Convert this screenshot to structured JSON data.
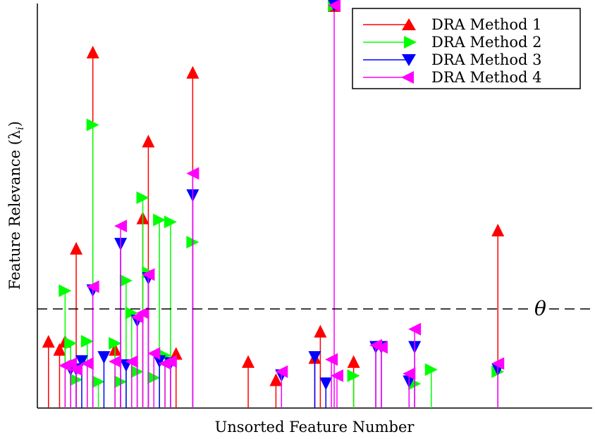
{
  "chart_data": {
    "type": "stem",
    "title": "",
    "xlabel": "Unsorted Feature Number",
    "ylabel": "Feature Relevance (λ",
    "ylabel_sub": "i",
    "ylabel_close": ")",
    "xlim": [
      0,
      100
    ],
    "ylim": [
      0,
      100
    ],
    "grid": false,
    "legend_position": "top-right",
    "threshold": {
      "label": "θ",
      "value": 24.5,
      "style": "dashed"
    },
    "series": [
      {
        "name": "DRA Method 1",
        "color": "#ff0000",
        "marker": "triangle-up",
        "x": [
          2,
          4,
          5,
          7,
          10,
          14,
          19,
          20,
          25,
          28,
          38,
          43,
          50,
          51,
          57,
          83
        ],
        "y": [
          16.5,
          14.5,
          16.5,
          39.5,
          88,
          14.5,
          47,
          66,
          13.5,
          83,
          11.5,
          7,
          12.5,
          19,
          11.5,
          44
        ]
      },
      {
        "name": "DRA Method 2",
        "color": "#00ff00",
        "marker": "triangle-right",
        "x": [
          5,
          6,
          7,
          9,
          10,
          11,
          14,
          15,
          16,
          17,
          18,
          19,
          20,
          21,
          22,
          23,
          24,
          28,
          57,
          68,
          71,
          83
        ],
        "y": [
          29,
          16,
          7,
          16.5,
          70,
          6.5,
          16,
          6.5,
          31.5,
          23.5,
          9,
          52,
          33.5,
          7.5,
          46.5,
          13,
          46,
          41,
          8,
          6,
          9.5,
          9
        ]
      },
      {
        "name": "DRA Method 3",
        "color": "#0000ff",
        "marker": "triangle-down",
        "x": [
          6,
          7,
          8,
          10,
          12,
          15,
          16,
          18,
          20,
          22,
          24,
          28,
          44,
          50,
          52,
          61,
          62,
          67,
          68,
          83
        ],
        "y": [
          9.5,
          9.5,
          11.5,
          29,
          12.5,
          40.5,
          10.5,
          21.5,
          32,
          11.5,
          11,
          52.5,
          8,
          12.5,
          6,
          15,
          15,
          6.5,
          15,
          9.5
        ]
      },
      {
        "name": "DRA Method 4",
        "color": "#ff00ff",
        "marker": "triangle-left",
        "x": [
          5,
          6,
          7,
          9,
          10,
          14,
          15,
          17,
          18,
          19,
          20,
          21,
          23,
          24,
          28,
          44,
          53,
          54,
          61,
          62,
          67,
          68,
          83
        ],
        "y": [
          10.5,
          11,
          9.5,
          11,
          30,
          11.5,
          45,
          11.5,
          22.5,
          23.5,
          33,
          13.5,
          11,
          11.5,
          58,
          9,
          12,
          8,
          15.5,
          15,
          8.5,
          19.5,
          11
        ]
      },
      {
        "name": "DRA Method 4",
        "color": "#ff00ff",
        "marker": "overlap-star",
        "x": [
          53.5
        ],
        "y": [
          99.5
        ],
        "overlap": true
      }
    ]
  }
}
